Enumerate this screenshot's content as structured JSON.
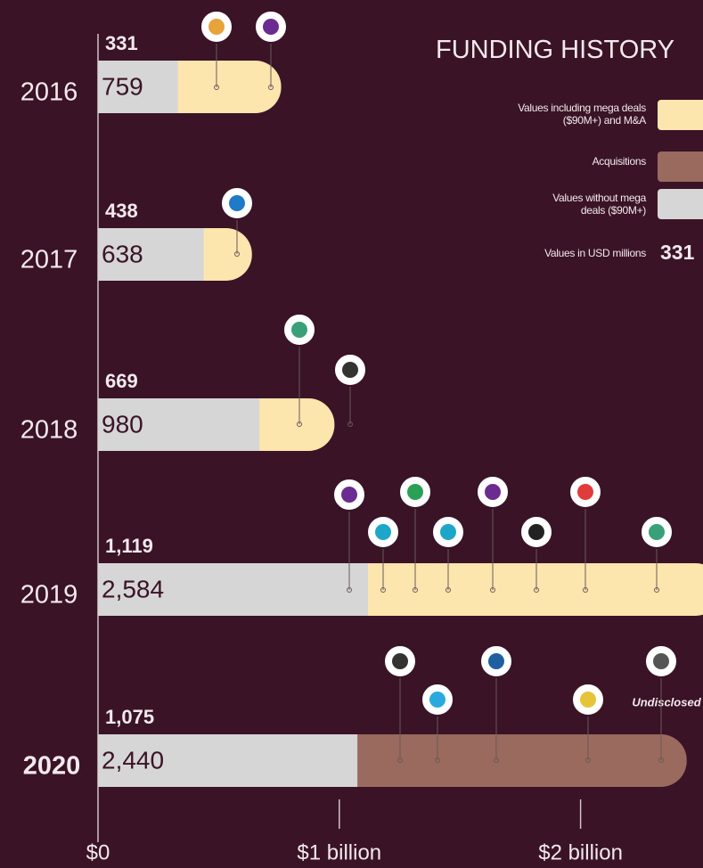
{
  "chart_data": {
    "type": "bar",
    "title": "FUNDING HISTORY",
    "categories": [
      "2016",
      "2017",
      "2018",
      "2019",
      "2020"
    ],
    "series": [
      {
        "name": "Values including mega deals ($90M+) and M&A",
        "colors": [
          "#fde5ae",
          "#fde5ae",
          "#fde5ae",
          "#fde5ae",
          "#9a6a5e"
        ],
        "values": [
          759,
          638,
          980,
          2584,
          2440
        ],
        "value_labels": [
          "759",
          "638",
          "980",
          "2,584",
          "2,440"
        ]
      },
      {
        "name": "Values without mega deals ($90M+)",
        "color": "#d6d6d6",
        "values": [
          331,
          438,
          669,
          1119,
          1075
        ],
        "value_labels": [
          "331",
          "438",
          "669",
          "1,119",
          "1,075"
        ]
      }
    ],
    "legend": [
      {
        "label": "Values including mega deals ($90M+) and M&A",
        "color": "#fde5ae"
      },
      {
        "label": "Acquisitions",
        "color": "#9a6a5e"
      },
      {
        "label": "Values without mega deals ($90M+)",
        "color": "#d6d6d6"
      }
    ],
    "legend_note": "Values in USD millions",
    "legend_sample": 331,
    "annotations": [
      "Undisclosed"
    ],
    "xlim": [
      0,
      2500
    ],
    "xticks": [
      {
        "value": 0,
        "label": "$0"
      },
      {
        "value": 1000,
        "label": "$1 billion"
      },
      {
        "value": 2000,
        "label": "$2 billion"
      }
    ]
  }
}
